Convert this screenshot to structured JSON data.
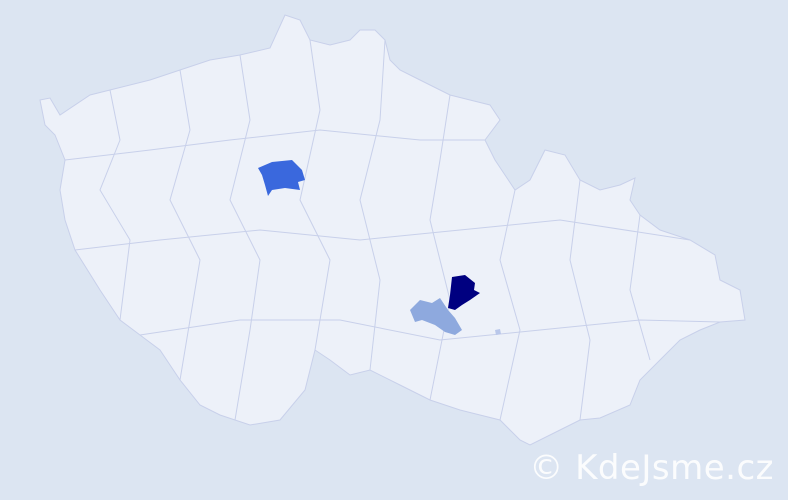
{
  "map": {
    "background_color": "#dce5f2",
    "land_color": "#edf1f9",
    "border_color": "#c8d0ea",
    "highlighted_regions": [
      {
        "color": "#3a68dd",
        "level": "medium"
      },
      {
        "color": "#000080",
        "level": "high"
      },
      {
        "color": "#8ea9de",
        "level": "low"
      },
      {
        "color": "#b9c7ea",
        "level": "lowest"
      }
    ]
  },
  "watermark": {
    "text": "© KdeJsme.cz"
  }
}
